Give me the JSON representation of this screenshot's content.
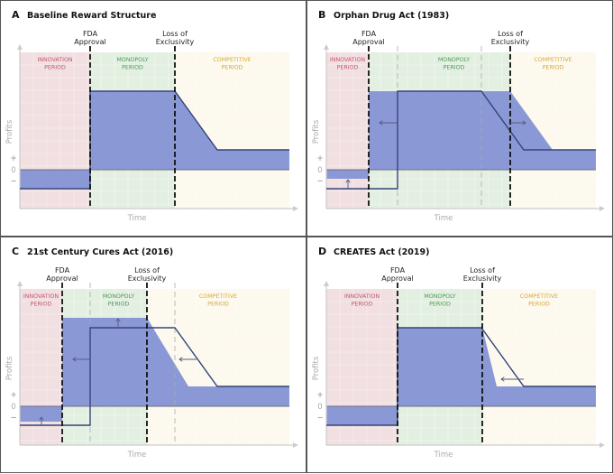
{
  "panels": [
    {
      "letter": "A",
      "title": "Baseline Reward Structure"
    },
    {
      "letter": "B",
      "title": "Orphan Drug Act (1983)"
    },
    {
      "letter": "C",
      "title": "21st Century Cures Act (2016)"
    },
    {
      "letter": "D",
      "title": "CREATES Act (2019)"
    }
  ],
  "events": {
    "fda": [
      "FDA",
      "Approval"
    ],
    "loe": [
      "Loss of",
      "Exclusivity"
    ]
  },
  "periods": {
    "innovation": [
      "INNOVATION",
      "PERIOD"
    ],
    "monopoly": [
      "MONOPOLY",
      "PERIOD"
    ],
    "competitive": [
      "COMPETITIVE",
      "PERIOD"
    ]
  },
  "axes": {
    "y_label": "Profits",
    "x_label": "Time",
    "plus": "+",
    "zero": "0",
    "minus": "−"
  },
  "colors": {
    "innovation_bg": "#f1dfe1",
    "monopoly_bg": "#e3f0e1",
    "competitive_bg": "#fdf9ee",
    "innovation_text": "#c4586f",
    "monopoly_text": "#4d9a58",
    "competitive_text": "#d9a935",
    "profit_fill": "#8a98d6",
    "profit_line": "#34457a",
    "plus": "#3a9a4a",
    "minus": "#d04a6a"
  }
}
